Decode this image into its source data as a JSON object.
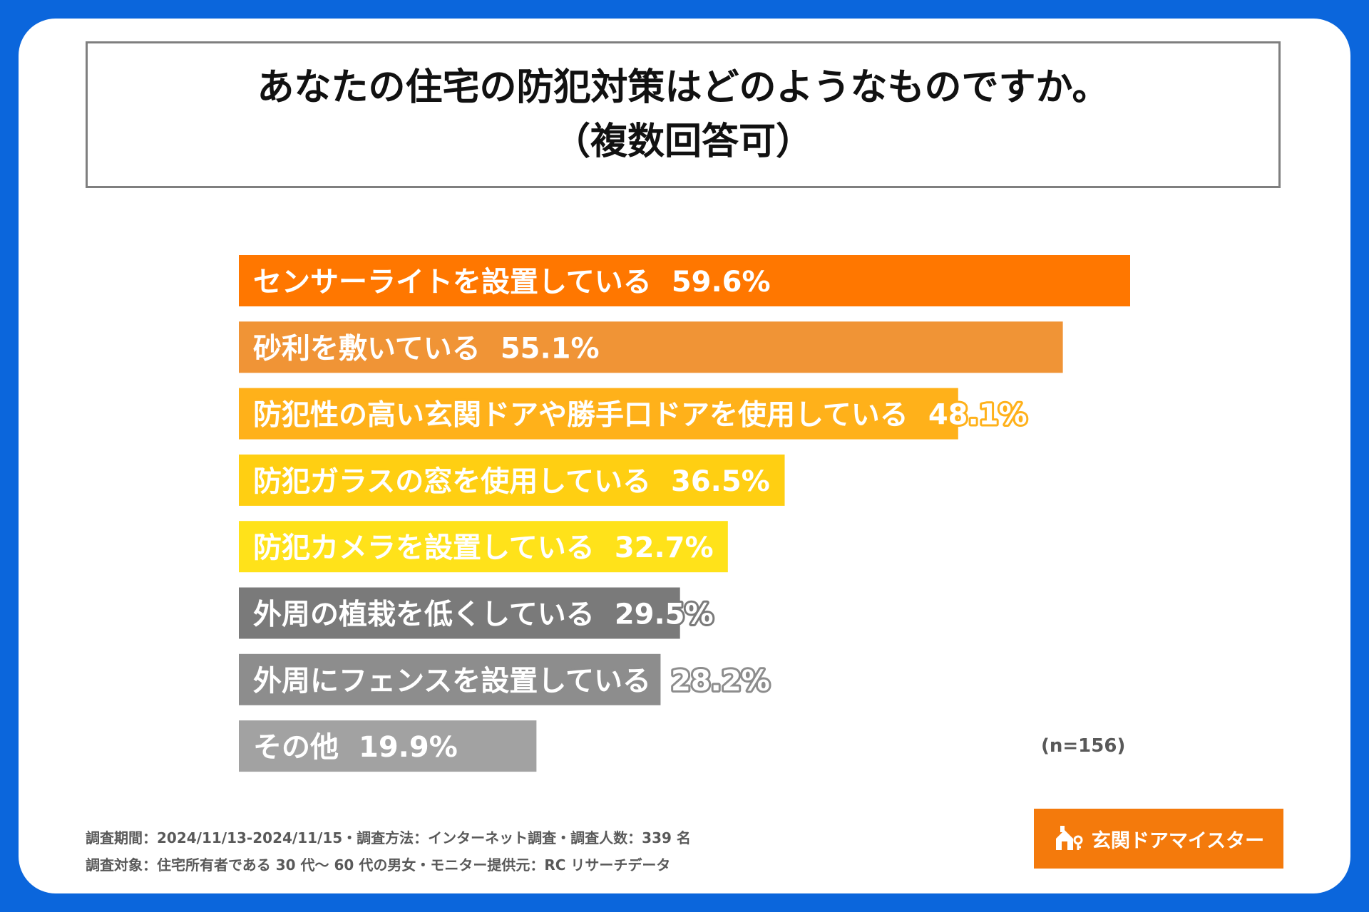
{
  "chart_data": {
    "type": "bar",
    "orientation": "horizontal",
    "title": "あなたの住宅の防犯対策はどのようなものですか。",
    "subtitle": "（複数回答可）",
    "unit": "%",
    "xlim": [
      0,
      59.6
    ],
    "categories": [
      "センサーライトを設置している",
      "砂利を敷いている",
      "防犯性の高い玄関ドアや勝手口ドアを使用している",
      "防犯ガラスの窓を使用している",
      "防犯カメラを設置している",
      "外周の植栽を低くしている",
      "外周にフェンスを設置している",
      "その他"
    ],
    "values": [
      59.6,
      55.1,
      48.1,
      36.5,
      32.7,
      29.5,
      28.2,
      19.9
    ],
    "value_labels": [
      "59.6%",
      "55.1%",
      "48.1%",
      "36.5%",
      "32.7%",
      "29.5%",
      "28.2%",
      "19.9%"
    ],
    "colors": [
      "#ff7700",
      "#f09436",
      "#ffb11a",
      "#ffcf12",
      "#ffe21a",
      "#7a7a7a",
      "#8d8d8d",
      "#a2a2a2"
    ],
    "label_outline": "#ffffff",
    "note": "(n=156)"
  },
  "footer": {
    "line1": "調査期間：2024/11/13-2024/11/15・調査方法：インターネット調査・調査人数：339 名",
    "line2": "調査対象：住宅所有者である 30 代～ 60 代の男女・モニター提供元：RC リサーチデータ"
  },
  "logo": {
    "text": "玄関ドアマイスター",
    "icon": "house-key-icon"
  }
}
